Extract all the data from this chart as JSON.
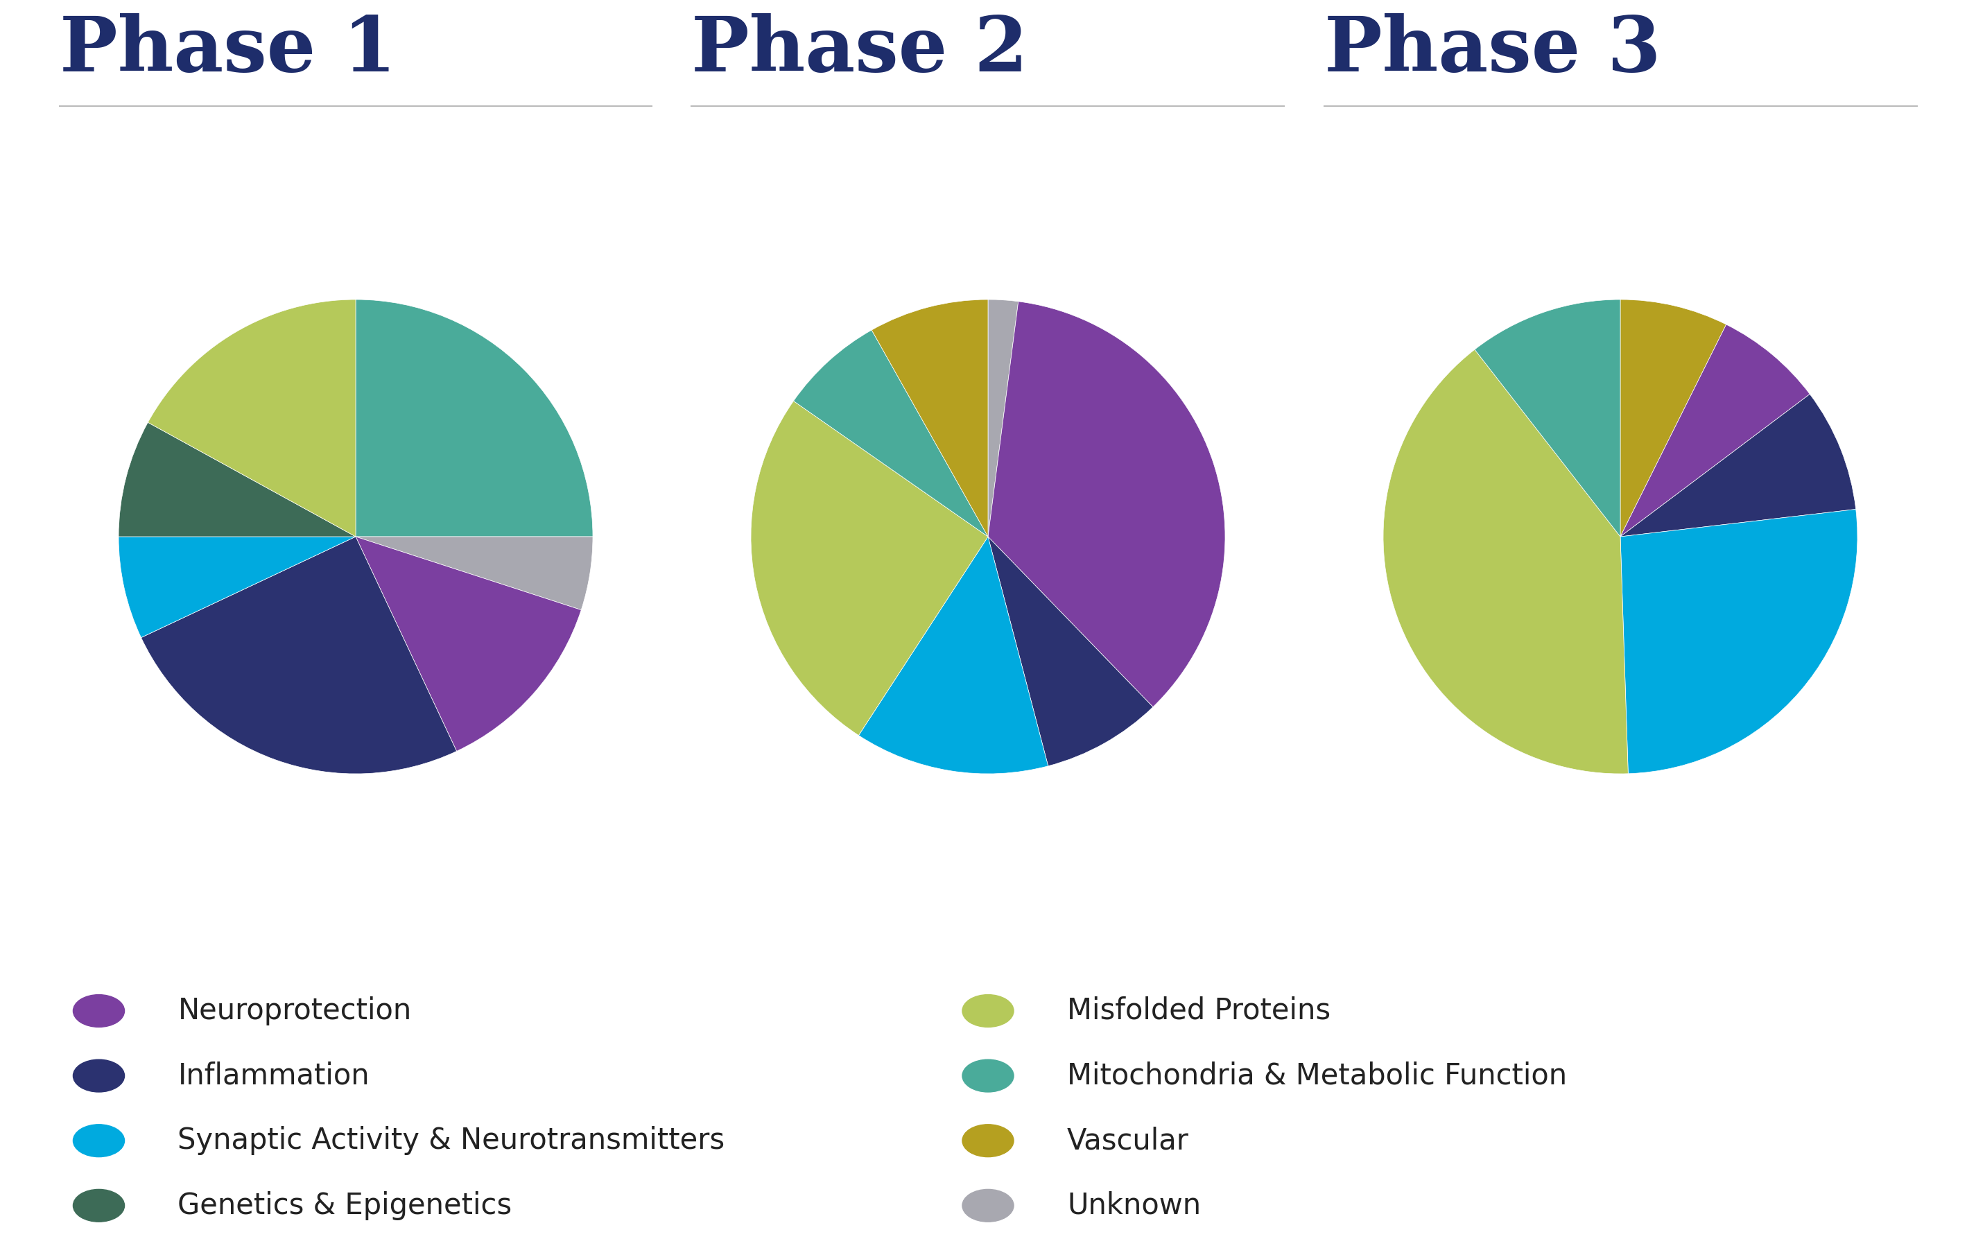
{
  "titles": [
    "Phase 1",
    "Phase 2",
    "Phase 3"
  ],
  "title_color": "#1e2d6b",
  "background_color": "#ffffff",
  "categories": [
    "Neuroprotection",
    "Inflammation",
    "Synaptic Activity & Neurotransmitters",
    "Genetics & Epigenetics",
    "Misfolded Proteins",
    "Mitochondria & Metabolic Function",
    "Vascular",
    "Unknown"
  ],
  "colors": [
    "#7b3fa0",
    "#2b3270",
    "#00aadf",
    "#3d6b57",
    "#b5c95a",
    "#4aab9a",
    "#b5a020",
    "#a8a8b0"
  ],
  "phase1_vals": [
    13,
    25,
    7,
    8,
    17,
    25,
    0,
    5
  ],
  "phase2_vals": [
    35,
    8,
    13,
    0,
    25,
    7,
    8,
    2
  ],
  "phase3_vals": [
    7,
    8,
    25,
    0,
    38,
    10,
    7,
    0
  ],
  "title_fontsize": 80,
  "legend_fontsize": 30,
  "line_color": "#bbbbbb"
}
